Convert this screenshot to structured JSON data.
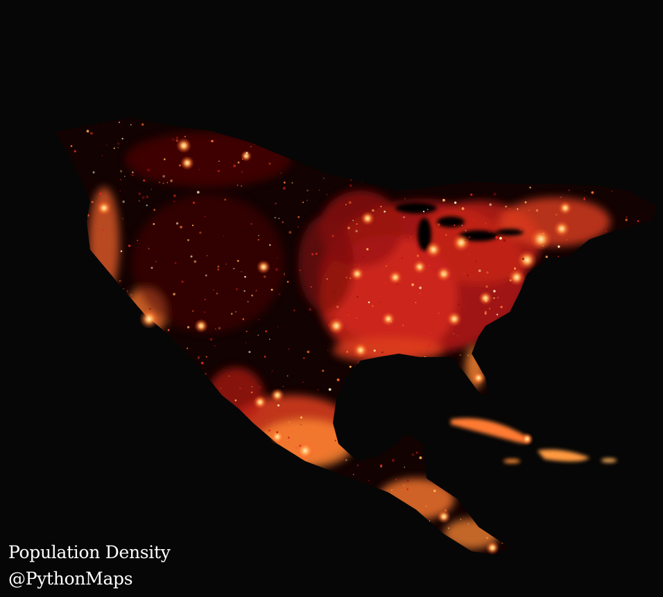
{
  "map": {
    "title": "Population Density",
    "credit": "@PythonMaps",
    "region": "North America and the Caribbean",
    "background_color": "#060606",
    "palette": {
      "low": "#3a0505",
      "mid_low": "#8e0f10",
      "mid": "#d8281c",
      "mid_high": "#ff6a2c",
      "high": "#ffb15a",
      "peak": "#fff1c4"
    }
  }
}
